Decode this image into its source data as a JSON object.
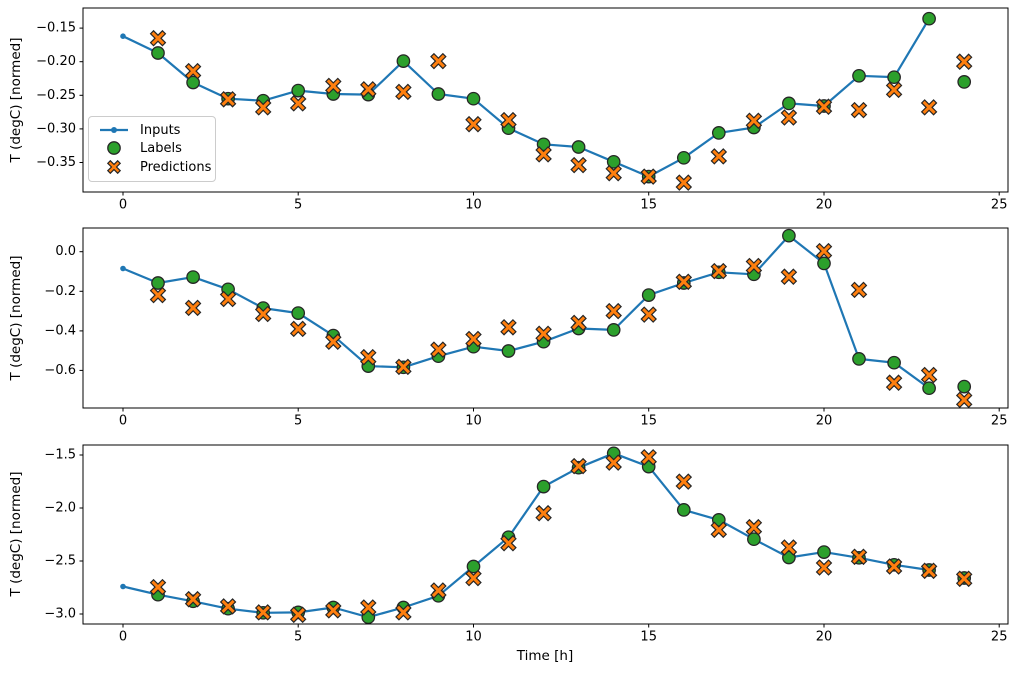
{
  "figure": {
    "xlabel": "Time [h]",
    "ylabel": "T (degC) [normed]",
    "colors": {
      "inputs": "#1f77b4",
      "labels": "#2ca02c",
      "predictions": "#ff7f0e",
      "marker_edge": "#262626",
      "spine": "#000000",
      "text": "#000000",
      "legend_border": "#cccccc",
      "legend_bg": "#ffffff"
    },
    "legend": {
      "items": [
        {
          "label": "Inputs",
          "marker": "line-dot"
        },
        {
          "label": "Labels",
          "marker": "circle"
        },
        {
          "label": "Predictions",
          "marker": "x-cross"
        }
      ]
    }
  },
  "chart_data": [
    {
      "type": "line",
      "title": "",
      "xlabel": "",
      "ylabel": "T (degC) [normed]",
      "xlim": [
        -1.14,
        25.25
      ],
      "ylim": [
        -0.394,
        -0.12
      ],
      "xticks": [
        0,
        5,
        10,
        15,
        20,
        25
      ],
      "xtick_labels": [
        "0",
        "5",
        "10",
        "15",
        "20",
        "25"
      ],
      "ytick_values": [
        -0.15,
        -0.2,
        -0.25,
        -0.3,
        -0.35
      ],
      "ytick_labels": [
        "−0.15",
        "−0.20",
        "−0.25",
        "−0.30",
        "−0.35"
      ],
      "series": {
        "inputs": {
          "x": [
            0,
            1,
            2,
            3,
            4,
            5,
            6,
            7,
            8,
            9,
            10,
            11,
            12,
            13,
            14,
            15,
            16,
            17,
            18,
            19,
            20,
            21,
            22,
            23
          ],
          "y": [
            -0.162,
            -0.187,
            -0.231,
            -0.255,
            -0.258,
            -0.243,
            -0.248,
            -0.249,
            -0.199,
            -0.248,
            -0.255,
            -0.299,
            -0.323,
            -0.327,
            -0.349,
            -0.371,
            -0.343,
            -0.306,
            -0.298,
            -0.262,
            -0.266,
            -0.221,
            -0.223,
            -0.136
          ]
        },
        "labels": {
          "x": [
            1,
            2,
            3,
            4,
            5,
            6,
            7,
            8,
            9,
            10,
            11,
            12,
            13,
            14,
            15,
            16,
            17,
            18,
            19,
            20,
            21,
            22,
            23,
            24
          ],
          "y": [
            -0.187,
            -0.231,
            -0.255,
            -0.258,
            -0.243,
            -0.248,
            -0.249,
            -0.199,
            -0.248,
            -0.255,
            -0.299,
            -0.323,
            -0.327,
            -0.349,
            -0.371,
            -0.343,
            -0.306,
            -0.298,
            -0.262,
            -0.266,
            -0.221,
            -0.223,
            -0.136,
            -0.23
          ]
        },
        "predictions": {
          "x": [
            1,
            2,
            3,
            4,
            5,
            6,
            7,
            8,
            9,
            10,
            11,
            12,
            13,
            14,
            15,
            16,
            17,
            18,
            19,
            20,
            21,
            22,
            23,
            24
          ],
          "y": [
            -0.165,
            -0.214,
            -0.256,
            -0.268,
            -0.262,
            -0.236,
            -0.241,
            -0.245,
            -0.199,
            -0.293,
            -0.287,
            -0.338,
            -0.354,
            -0.366,
            -0.371,
            -0.38,
            -0.341,
            -0.288,
            -0.283,
            -0.267,
            -0.272,
            -0.242,
            -0.268,
            -0.2
          ]
        }
      }
    },
    {
      "type": "line",
      "title": "",
      "xlabel": "",
      "ylabel": "T (degC) [normed]",
      "xlim": [
        -1.14,
        25.25
      ],
      "ylim": [
        -0.79,
        0.12
      ],
      "xticks": [
        0,
        5,
        10,
        15,
        20,
        25
      ],
      "xtick_labels": [
        "0",
        "5",
        "10",
        "15",
        "20",
        "25"
      ],
      "ytick_values": [
        0.0,
        -0.2,
        -0.4,
        -0.6
      ],
      "ytick_labels": [
        "0.0",
        "−0.2",
        "−0.4",
        "−0.6"
      ],
      "series": {
        "inputs": {
          "x": [
            0,
            1,
            2,
            3,
            4,
            5,
            6,
            7,
            8,
            9,
            10,
            11,
            12,
            13,
            14,
            15,
            16,
            17,
            18,
            19,
            20,
            21,
            22,
            23
          ],
          "y": [
            -0.085,
            -0.158,
            -0.128,
            -0.19,
            -0.285,
            -0.31,
            -0.424,
            -0.578,
            -0.584,
            -0.528,
            -0.48,
            -0.502,
            -0.455,
            -0.388,
            -0.395,
            -0.219,
            -0.158,
            -0.104,
            -0.114,
            0.081,
            -0.059,
            -0.542,
            -0.561,
            -0.69
          ]
        },
        "labels": {
          "x": [
            1,
            2,
            3,
            4,
            5,
            6,
            7,
            8,
            9,
            10,
            11,
            12,
            13,
            14,
            15,
            16,
            17,
            18,
            19,
            20,
            21,
            22,
            23,
            24
          ],
          "y": [
            -0.158,
            -0.128,
            -0.19,
            -0.285,
            -0.31,
            -0.424,
            -0.578,
            -0.584,
            -0.528,
            -0.48,
            -0.502,
            -0.455,
            -0.388,
            -0.395,
            -0.219,
            -0.158,
            -0.104,
            -0.114,
            0.081,
            -0.059,
            -0.542,
            -0.561,
            -0.69,
            -0.682
          ]
        },
        "predictions": {
          "x": [
            1,
            2,
            3,
            4,
            5,
            6,
            7,
            8,
            9,
            10,
            11,
            12,
            13,
            14,
            15,
            16,
            17,
            18,
            19,
            20,
            21,
            22,
            23,
            24
          ],
          "y": [
            -0.219,
            -0.284,
            -0.239,
            -0.315,
            -0.39,
            -0.455,
            -0.533,
            -0.582,
            -0.495,
            -0.441,
            -0.382,
            -0.415,
            -0.36,
            -0.3,
            -0.318,
            -0.152,
            -0.098,
            -0.072,
            -0.126,
            0.003,
            -0.193,
            -0.662,
            -0.623,
            -0.749
          ]
        }
      }
    },
    {
      "type": "line",
      "title": "",
      "xlabel": "Time [h]",
      "ylabel": "T (degC) [normed]",
      "xlim": [
        -1.14,
        25.25
      ],
      "ylim": [
        -3.094,
        -1.406
      ],
      "xticks": [
        0,
        5,
        10,
        15,
        20,
        25
      ],
      "xtick_labels": [
        "0",
        "5",
        "10",
        "15",
        "20",
        "25"
      ],
      "ytick_values": [
        -1.5,
        -2.0,
        -2.5,
        -3.0
      ],
      "ytick_labels": [
        "−1.5",
        "−2.0",
        "−2.5",
        "−3.0"
      ],
      "series": {
        "inputs": {
          "x": [
            0,
            1,
            2,
            3,
            4,
            5,
            6,
            7,
            8,
            9,
            10,
            11,
            12,
            13,
            14,
            15,
            16,
            17,
            18,
            19,
            20,
            21,
            22,
            23
          ],
          "y": [
            -2.74,
            -2.818,
            -2.88,
            -2.95,
            -2.988,
            -2.985,
            -2.938,
            -3.03,
            -2.938,
            -2.828,
            -2.552,
            -2.275,
            -1.798,
            -1.62,
            -1.484,
            -1.61,
            -2.018,
            -2.112,
            -2.294,
            -2.467,
            -2.416,
            -2.47,
            -2.536,
            -2.585
          ]
        },
        "labels": {
          "x": [
            1,
            2,
            3,
            4,
            5,
            6,
            7,
            8,
            9,
            10,
            11,
            12,
            13,
            14,
            15,
            16,
            17,
            18,
            19,
            20,
            21,
            22,
            23,
            24
          ],
          "y": [
            -2.818,
            -2.88,
            -2.95,
            -2.988,
            -2.985,
            -2.938,
            -3.03,
            -2.938,
            -2.828,
            -2.552,
            -2.275,
            -1.798,
            -1.62,
            -1.484,
            -1.61,
            -2.018,
            -2.112,
            -2.294,
            -2.467,
            -2.416,
            -2.47,
            -2.536,
            -2.585,
            -2.66
          ]
        },
        "predictions": {
          "x": [
            1,
            2,
            3,
            4,
            5,
            6,
            7,
            8,
            9,
            10,
            11,
            12,
            13,
            14,
            15,
            16,
            17,
            18,
            19,
            20,
            21,
            22,
            23,
            24
          ],
          "y": [
            -2.746,
            -2.86,
            -2.928,
            -2.985,
            -3.007,
            -2.966,
            -2.938,
            -2.985,
            -2.778,
            -2.661,
            -2.332,
            -2.049,
            -1.605,
            -1.572,
            -1.522,
            -1.751,
            -2.206,
            -2.181,
            -2.373,
            -2.561,
            -2.46,
            -2.552,
            -2.592,
            -2.668
          ]
        }
      }
    }
  ]
}
